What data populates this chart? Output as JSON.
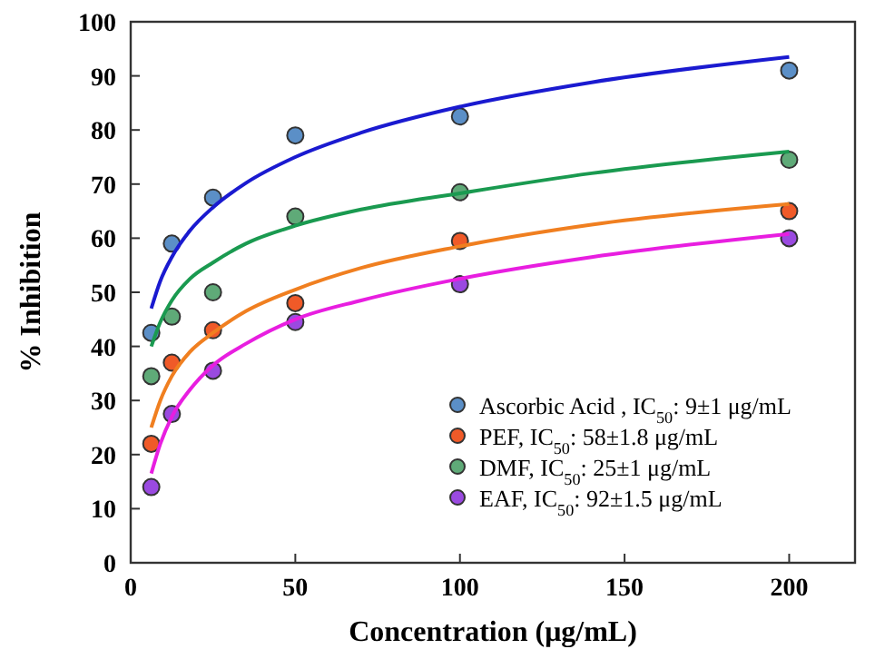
{
  "chart_data": {
    "type": "scatter",
    "xlabel": "Concentration (μg/mL)",
    "ylabel": "% Inhibition",
    "xlim": [
      0,
      220
    ],
    "ylim": [
      0,
      100
    ],
    "xticks": [
      0,
      50,
      100,
      150,
      200
    ],
    "yticks": [
      0,
      10,
      20,
      30,
      40,
      50,
      60,
      70,
      80,
      90,
      100
    ],
    "legend": "bottom right",
    "marker": "circle",
    "x": [
      6.25,
      12.5,
      25,
      50,
      100,
      200
    ],
    "series": [
      {
        "name": "Ascorbic Acid , IC$_{50}$: 9±1 μg/mL",
        "color": "#5b8fc7",
        "values": [
          42.5,
          59,
          67.5,
          79,
          82.5,
          91
        ]
      },
      {
        "name": "PEF, IC$_{50}$: 58±1.8  μg/mL",
        "color": "#f05a28",
        "values": [
          22,
          37,
          43,
          48,
          59.5,
          65
        ]
      },
      {
        "name": "DMF, IC$_{50}$: 25±1   μg/mL",
        "color": "#5faa78",
        "values": [
          34.5,
          45.5,
          50,
          64,
          68.5,
          74.5
        ]
      },
      {
        "name": "EAF, IC$_{50}$: 92±1.5 μg/mL",
        "color": "#9a4ae0",
        "values": [
          14,
          27.5,
          35.5,
          44.5,
          51.5,
          60
        ]
      },
      {
        "type": "line",
        "marker": "none",
        "color": "#1a1ad0",
        "x": [
          6.25,
          9,
          12.5,
          18,
          25,
          35,
          50,
          70,
          100,
          140,
          200
        ],
        "values": [
          47,
          52.1,
          56.5,
          61.4,
          65.7,
          70.2,
          75,
          79.5,
          84.3,
          88.8,
          93.5
        ]
      },
      {
        "type": "line",
        "marker": "none",
        "color": "#f07f20",
        "x": [
          6.25,
          9,
          12.5,
          18,
          25,
          35,
          50,
          70,
          100,
          140,
          200
        ],
        "values": [
          25,
          30,
          34.5,
          39,
          42.5,
          46.5,
          50.5,
          54.5,
          58.5,
          62.5,
          66.3
        ]
      },
      {
        "type": "line",
        "marker": "none",
        "color": "#1a9a50",
        "x": [
          6.25,
          9,
          12.5,
          18,
          25,
          35,
          50,
          70,
          100,
          140,
          200
        ],
        "values": [
          40,
          44.5,
          48.5,
          52.5,
          55.5,
          59,
          62.3,
          65.3,
          68.3,
          72,
          76
        ]
      },
      {
        "type": "line",
        "marker": "none",
        "color": "#e81ee0",
        "x": [
          6.25,
          9,
          12.5,
          18,
          25,
          35,
          50,
          70,
          100,
          140,
          200
        ],
        "values": [
          16.5,
          22,
          27,
          32,
          36.5,
          40.5,
          45,
          48.5,
          52.5,
          56.5,
          60.8
        ]
      }
    ]
  }
}
